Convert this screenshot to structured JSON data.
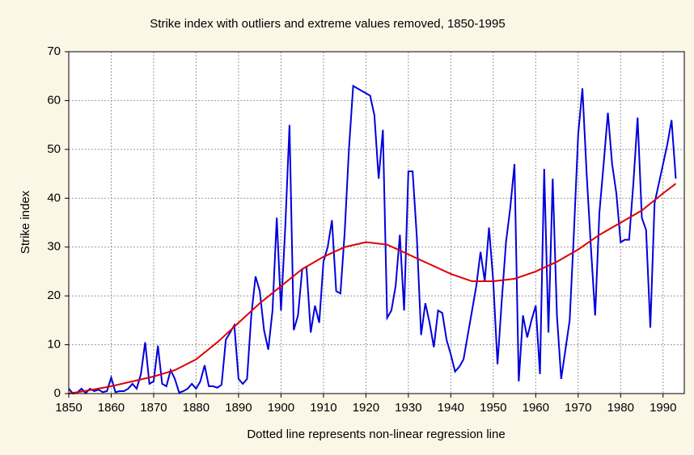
{
  "chart_data": {
    "type": "line",
    "title": "Strike index with outliers and extreme values removed, 1850-1995",
    "xlabel": "Dotted line represents non-linear regression line",
    "ylabel": "Strike index",
    "xlim": [
      1850,
      1995
    ],
    "ylim": [
      0,
      70
    ],
    "xticks": [
      1850,
      1860,
      1870,
      1880,
      1890,
      1900,
      1910,
      1920,
      1930,
      1940,
      1950,
      1960,
      1970,
      1980,
      1990
    ],
    "yticks": [
      0,
      10,
      20,
      30,
      40,
      50,
      60,
      70
    ],
    "grid": true,
    "series": [
      {
        "color": "#0000dd",
        "x": [
          1850,
          1851,
          1852,
          1853,
          1854,
          1855,
          1856,
          1857,
          1858,
          1859,
          1860,
          1861,
          1862,
          1863,
          1864,
          1865,
          1866,
          1867,
          1868,
          1869,
          1870,
          1871,
          1872,
          1873,
          1874,
          1875,
          1876,
          1877,
          1878,
          1879,
          1880,
          1881,
          1882,
          1883,
          1884,
          1885,
          1886,
          1887,
          1888,
          1889,
          1890,
          1891,
          1892,
          1893,
          1894,
          1895,
          1896,
          1897,
          1898,
          1899,
          1900,
          1901,
          1902,
          1903,
          1904,
          1905,
          1906,
          1907,
          1908,
          1909,
          1910,
          1911,
          1912,
          1913,
          1914,
          1915,
          1916,
          1917,
          1918,
          1919,
          1920,
          1921,
          1922,
          1923,
          1924,
          1925,
          1926,
          1927,
          1928,
          1929,
          1930,
          1931,
          1932,
          1933,
          1934,
          1935,
          1936,
          1937,
          1938,
          1939,
          1940,
          1941,
          1942,
          1943,
          1944,
          1945,
          1946,
          1947,
          1948,
          1949,
          1950,
          1951,
          1952,
          1953,
          1954,
          1955,
          1956,
          1957,
          1958,
          1959,
          1960,
          1961,
          1962,
          1963,
          1964,
          1965,
          1966,
          1967,
          1968,
          1969,
          1970,
          1971,
          1972,
          1973,
          1974,
          1975,
          1976,
          1977,
          1978,
          1979,
          1980,
          1981,
          1982,
          1983,
          1984,
          1985,
          1986,
          1987,
          1988,
          1989,
          1990,
          1991,
          1992,
          1993
        ],
        "values": [
          1,
          0,
          0.2,
          1,
          0.1,
          1,
          0.5,
          0.8,
          0.3,
          0.5,
          3.3,
          0.3,
          0.5,
          0.5,
          1,
          2,
          1,
          4,
          10.5,
          2,
          2.5,
          9.8,
          2,
          1.5,
          4.8,
          3,
          0.2,
          0.5,
          1,
          2,
          1,
          2.5,
          5.8,
          1.5,
          1.5,
          1.2,
          1.8,
          11,
          12.5,
          14,
          3,
          2,
          3,
          16,
          24,
          21,
          13,
          9,
          17,
          36,
          17,
          34,
          55,
          13,
          16,
          25.5,
          26,
          12.5,
          18,
          14.5,
          27,
          30,
          35.5,
          21,
          20.5,
          33,
          50,
          63,
          62.5,
          62,
          61.5,
          61,
          57,
          44,
          54,
          15.5,
          17,
          22,
          32.5,
          17,
          45.5,
          45.5,
          32,
          12,
          18.5,
          14.5,
          9.5,
          17,
          16.5,
          11,
          8,
          4.5,
          5.5,
          7,
          12,
          17,
          22,
          29,
          23,
          34,
          23,
          6,
          19,
          31,
          38,
          47,
          2.5,
          16,
          11.5,
          15,
          18,
          4,
          46,
          12.5,
          44,
          16,
          3,
          9,
          15,
          33,
          53,
          62.5,
          45,
          30,
          16,
          37,
          47,
          57.5,
          47,
          41,
          31,
          31.5,
          31.5,
          43,
          56.5,
          36,
          33.5,
          13.5,
          39,
          43,
          47,
          51,
          56,
          44
        ]
      },
      {
        "color": "#dd0000",
        "x": [
          1850,
          1855,
          1860,
          1865,
          1870,
          1875,
          1880,
          1885,
          1890,
          1895,
          1900,
          1905,
          1910,
          1915,
          1920,
          1925,
          1930,
          1935,
          1940,
          1945,
          1950,
          1955,
          1960,
          1965,
          1970,
          1975,
          1980,
          1985,
          1990,
          1993
        ],
        "values": [
          0,
          0.7,
          1.5,
          2.5,
          3.5,
          4.8,
          7,
          10.5,
          14.5,
          18.5,
          22,
          25.5,
          28,
          30,
          31,
          30.5,
          28.5,
          26.5,
          24.5,
          23,
          23,
          23.5,
          25,
          27,
          29.5,
          32.5,
          35,
          37.5,
          41,
          43
        ]
      }
    ]
  }
}
